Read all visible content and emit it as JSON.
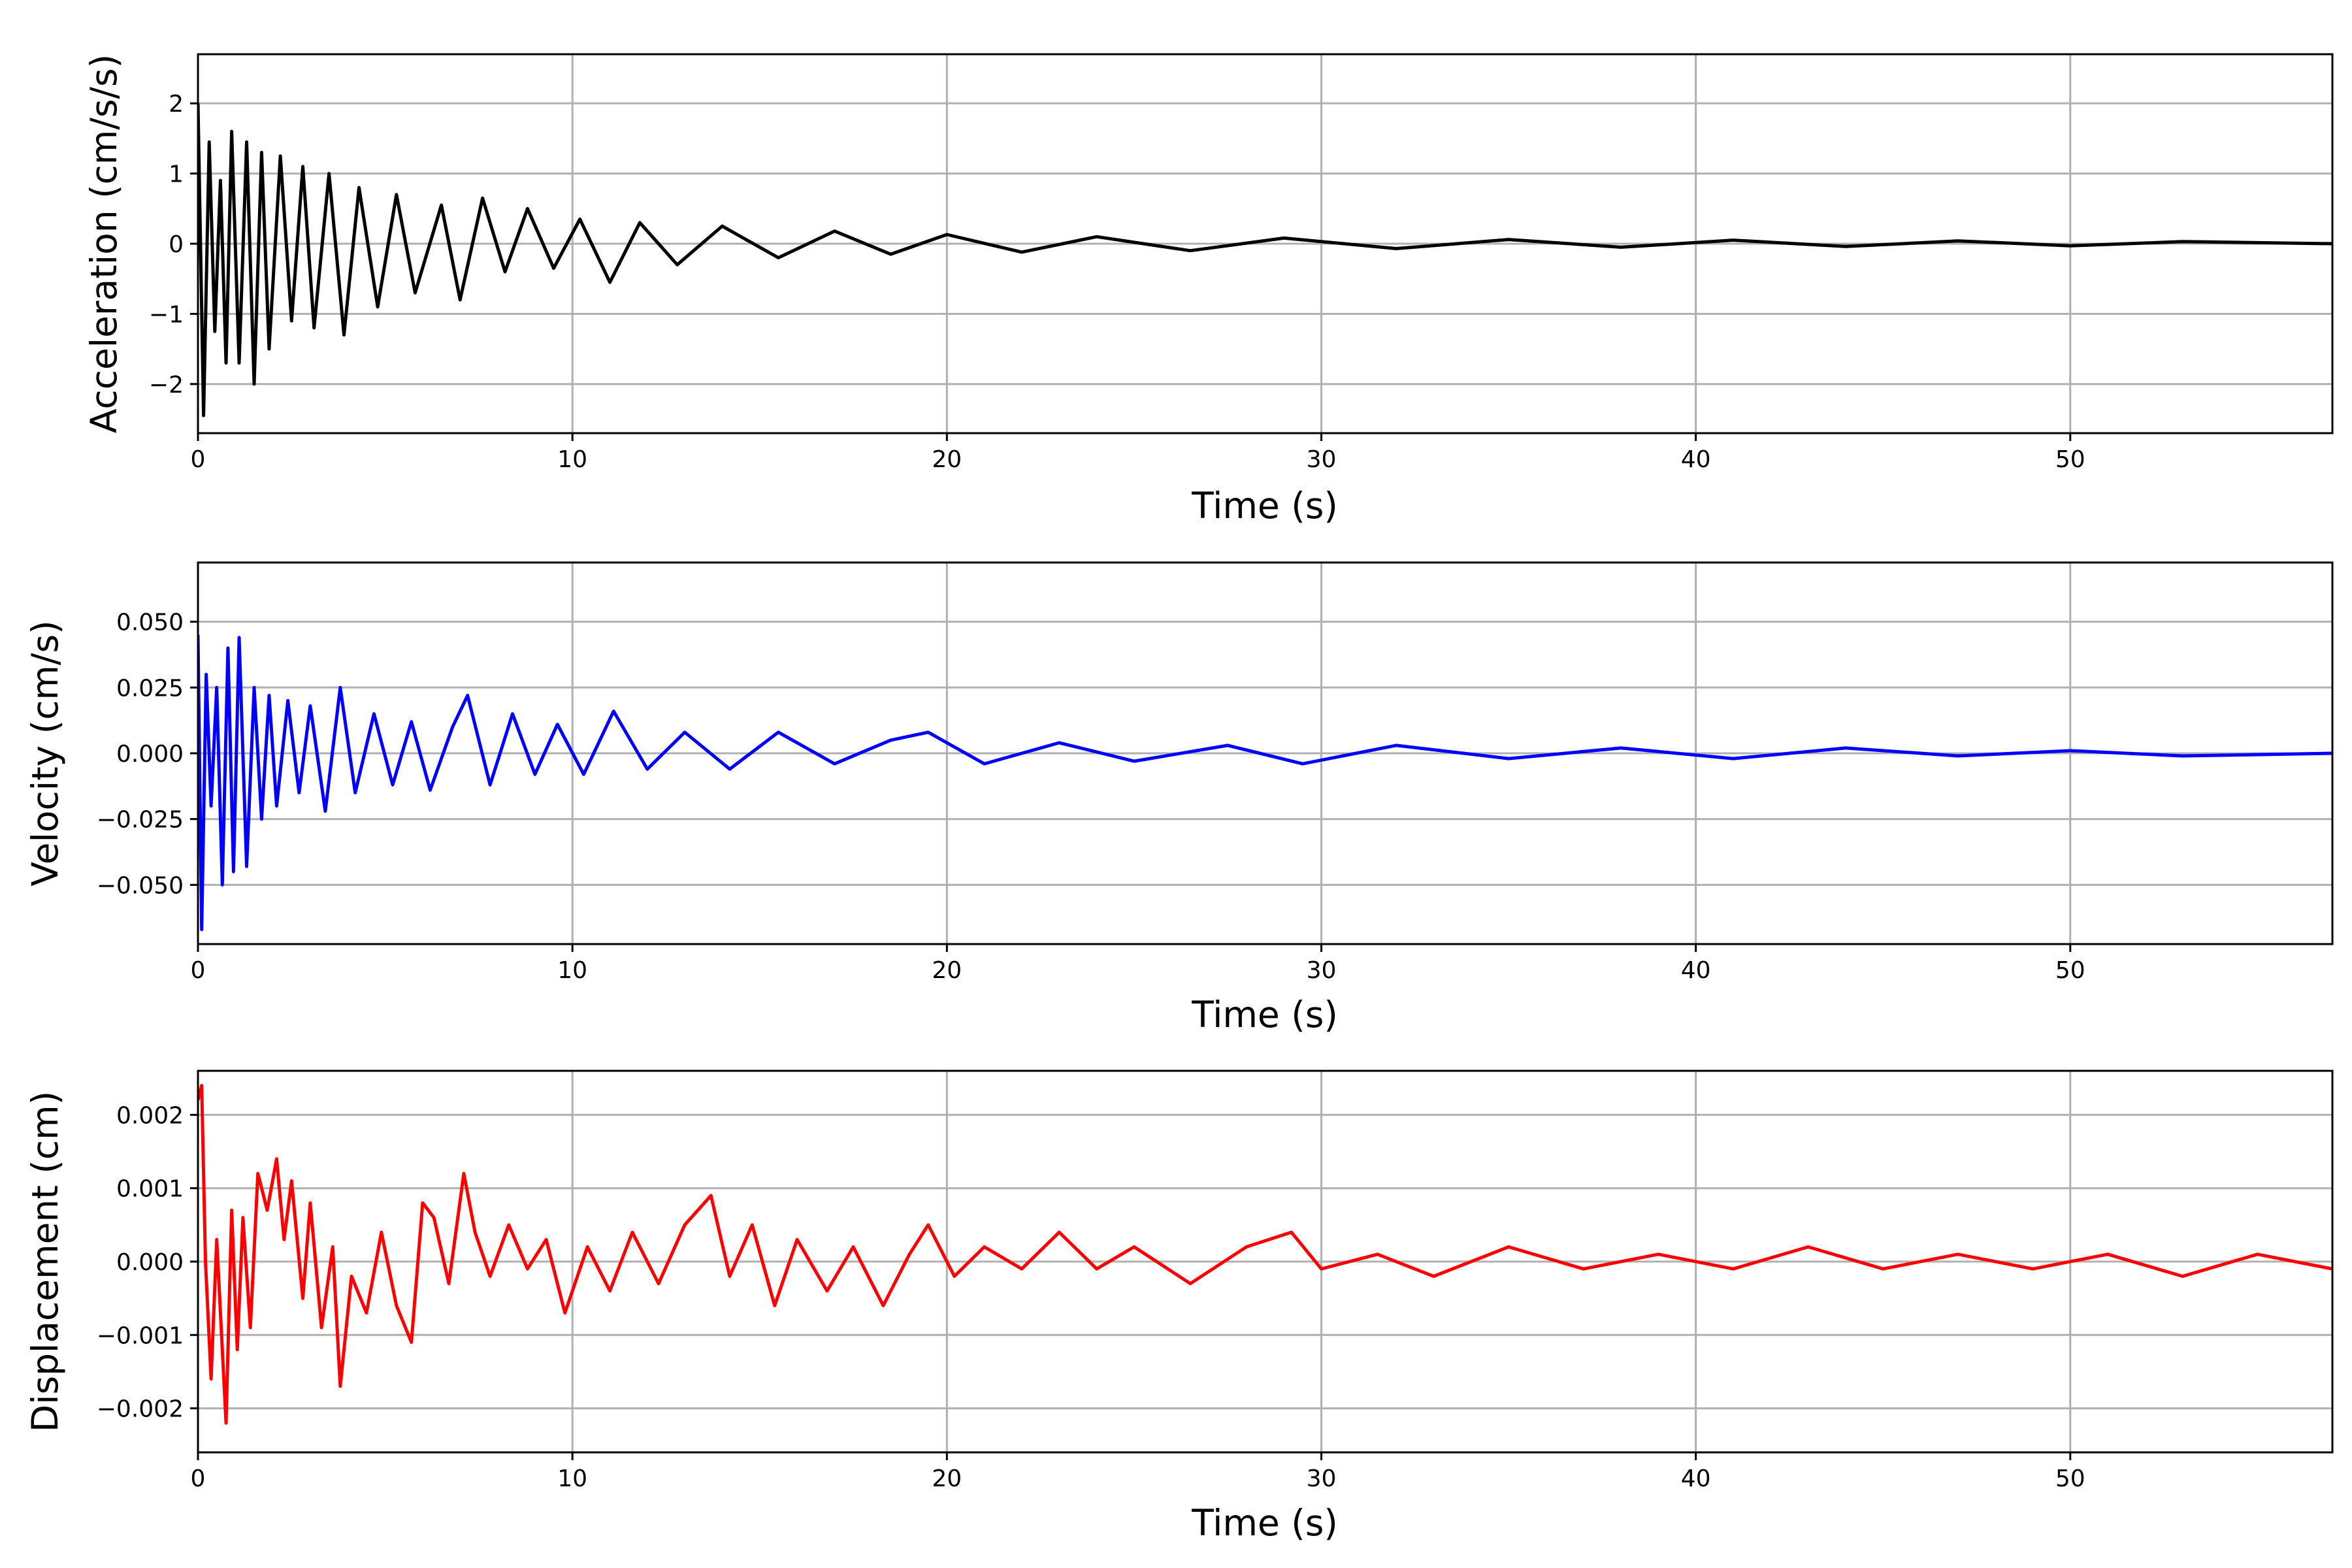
{
  "figure": {
    "background": "#ffffff",
    "grid_color": "#b0b0b0"
  },
  "chart_data": [
    {
      "id": "acceleration",
      "type": "line",
      "title": "",
      "xlabel": "Time (s)",
      "ylabel": "Acceleration (cm/s/s)",
      "xlim": [
        0,
        57
      ],
      "ylim": [
        -2.7,
        2.7
      ],
      "xticks": [
        0,
        10,
        20,
        30,
        40,
        50
      ],
      "yticks": [
        -2,
        -1,
        0,
        1,
        2
      ],
      "ytick_labels": [
        "−2",
        "−1",
        "0",
        "1",
        "2"
      ],
      "grid": true,
      "color": "#000000",
      "series": [
        {
          "x": [
            0,
            0.15,
            0.3,
            0.45,
            0.6,
            0.75,
            0.9,
            1.1,
            1.3,
            1.5,
            1.7,
            1.9,
            2.2,
            2.5,
            2.8,
            3.1,
            3.5,
            3.9,
            4.3,
            4.8,
            5.3,
            5.8,
            6.5,
            7.0,
            7.6,
            8.2,
            8.8,
            9.5,
            10.2,
            11.0,
            11.8,
            12.8,
            14.0,
            15.5,
            17.0,
            18.5,
            20.0,
            22.0,
            24.0,
            26.5,
            29.0,
            32.0,
            35.0,
            38.0,
            41.0,
            44.0,
            47.0,
            50.0,
            53.0,
            57.0
          ],
          "y": [
            2.0,
            -2.45,
            1.45,
            -1.25,
            0.9,
            -1.7,
            1.6,
            -1.7,
            1.45,
            -2.0,
            1.3,
            -1.5,
            1.25,
            -1.1,
            1.1,
            -1.2,
            1.0,
            -1.3,
            0.8,
            -0.9,
            0.7,
            -0.7,
            0.55,
            -0.8,
            0.65,
            -0.4,
            0.5,
            -0.35,
            0.35,
            -0.55,
            0.3,
            -0.3,
            0.25,
            -0.2,
            0.18,
            -0.15,
            0.13,
            -0.12,
            0.1,
            -0.1,
            0.08,
            -0.07,
            0.06,
            -0.05,
            0.05,
            -0.04,
            0.04,
            -0.03,
            0.03,
            0.0
          ]
        }
      ]
    },
    {
      "id": "velocity",
      "type": "line",
      "title": "",
      "xlabel": "Time (s)",
      "ylabel": "Velocity (cm/s)",
      "xlim": [
        0,
        57
      ],
      "ylim": [
        -0.0725,
        0.0725
      ],
      "xticks": [
        0,
        10,
        20,
        30,
        40,
        50
      ],
      "yticks": [
        -0.05,
        -0.025,
        0.0,
        0.025,
        0.05
      ],
      "ytick_labels": [
        "−0.050",
        "−0.025",
        "0.000",
        "0.025",
        "0.050"
      ],
      "grid": true,
      "color": "#0000ff",
      "series": [
        {
          "x": [
            0,
            0.1,
            0.22,
            0.35,
            0.5,
            0.65,
            0.8,
            0.95,
            1.1,
            1.3,
            1.5,
            1.7,
            1.9,
            2.1,
            2.4,
            2.7,
            3.0,
            3.4,
            3.8,
            4.2,
            4.7,
            5.2,
            5.7,
            6.2,
            6.8,
            7.2,
            7.8,
            8.4,
            9.0,
            9.6,
            10.3,
            11.1,
            12.0,
            13.0,
            14.2,
            15.5,
            17.0,
            18.5,
            19.5,
            21.0,
            23.0,
            25.0,
            27.5,
            29.5,
            32.0,
            35.0,
            38.0,
            41.0,
            44.0,
            47.0,
            50.0,
            53.0,
            57.0
          ],
          "y": [
            0.045,
            -0.067,
            0.03,
            -0.02,
            0.025,
            -0.05,
            0.04,
            -0.045,
            0.044,
            -0.043,
            0.025,
            -0.025,
            0.022,
            -0.02,
            0.02,
            -0.015,
            0.018,
            -0.022,
            0.025,
            -0.015,
            0.015,
            -0.012,
            0.012,
            -0.014,
            0.01,
            0.022,
            -0.012,
            0.015,
            -0.008,
            0.011,
            -0.008,
            0.016,
            -0.006,
            0.008,
            -0.006,
            0.008,
            -0.004,
            0.005,
            0.008,
            -0.004,
            0.004,
            -0.003,
            0.003,
            -0.004,
            0.003,
            -0.002,
            0.002,
            -0.002,
            0.002,
            -0.001,
            0.001,
            -0.001,
            0.0
          ]
        }
      ]
    },
    {
      "id": "displacement",
      "type": "line",
      "title": "",
      "xlabel": "Time (s)",
      "ylabel": "Displacement (cm)",
      "xlim": [
        0,
        57
      ],
      "ylim": [
        -0.0026,
        0.0026
      ],
      "xticks": [
        0,
        10,
        20,
        30,
        40,
        50
      ],
      "yticks": [
        -0.002,
        -0.001,
        0.0,
        0.001,
        0.002
      ],
      "ytick_labels": [
        "−0.002",
        "−0.001",
        "0.000",
        "0.001",
        "0.002"
      ],
      "grid": true,
      "color": "#ff0000",
      "series": [
        {
          "x": [
            0,
            0.1,
            0.2,
            0.35,
            0.5,
            0.75,
            0.9,
            1.05,
            1.2,
            1.4,
            1.6,
            1.85,
            2.1,
            2.3,
            2.5,
            2.8,
            3.0,
            3.3,
            3.6,
            3.8,
            4.1,
            4.5,
            4.9,
            5.3,
            5.7,
            6.0,
            6.3,
            6.7,
            7.1,
            7.4,
            7.8,
            8.3,
            8.8,
            9.3,
            9.8,
            10.4,
            11.0,
            11.6,
            12.3,
            13.0,
            13.7,
            14.2,
            14.8,
            15.4,
            16.0,
            16.8,
            17.5,
            18.3,
            19.0,
            19.5,
            20.2,
            21.0,
            22.0,
            23.0,
            24.0,
            25.0,
            26.5,
            28.0,
            29.2,
            30.0,
            31.5,
            33.0,
            35.0,
            37.0,
            39.0,
            41.0,
            43.0,
            45.0,
            47.0,
            49.0,
            51.0,
            53.0,
            55.0,
            57.0
          ],
          "y": [
            0.0022,
            0.0024,
            0.0,
            -0.0016,
            0.0003,
            -0.0022,
            0.0007,
            -0.0012,
            0.0006,
            -0.0009,
            0.0012,
            0.0007,
            0.0014,
            0.0003,
            0.0011,
            -0.0005,
            0.0008,
            -0.0009,
            0.0002,
            -0.0017,
            -0.0002,
            -0.0007,
            0.0004,
            -0.0006,
            -0.0011,
            0.0008,
            0.0006,
            -0.0003,
            0.0012,
            0.0004,
            -0.0002,
            0.0005,
            -0.0001,
            0.0003,
            -0.0007,
            0.0002,
            -0.0004,
            0.0004,
            -0.0003,
            0.0005,
            0.0009,
            -0.0002,
            0.0005,
            -0.0006,
            0.0003,
            -0.0004,
            0.0002,
            -0.0006,
            0.0001,
            0.0005,
            -0.0002,
            0.0002,
            -0.0001,
            0.0004,
            -0.0001,
            0.0002,
            -0.0003,
            0.0002,
            0.0004,
            -0.0001,
            0.0001,
            -0.0002,
            0.0002,
            -0.0001,
            0.0001,
            -0.0001,
            0.0002,
            -0.0001,
            0.0001,
            -0.0001,
            0.0001,
            -0.0002,
            0.0001,
            -0.0001
          ]
        }
      ]
    }
  ]
}
